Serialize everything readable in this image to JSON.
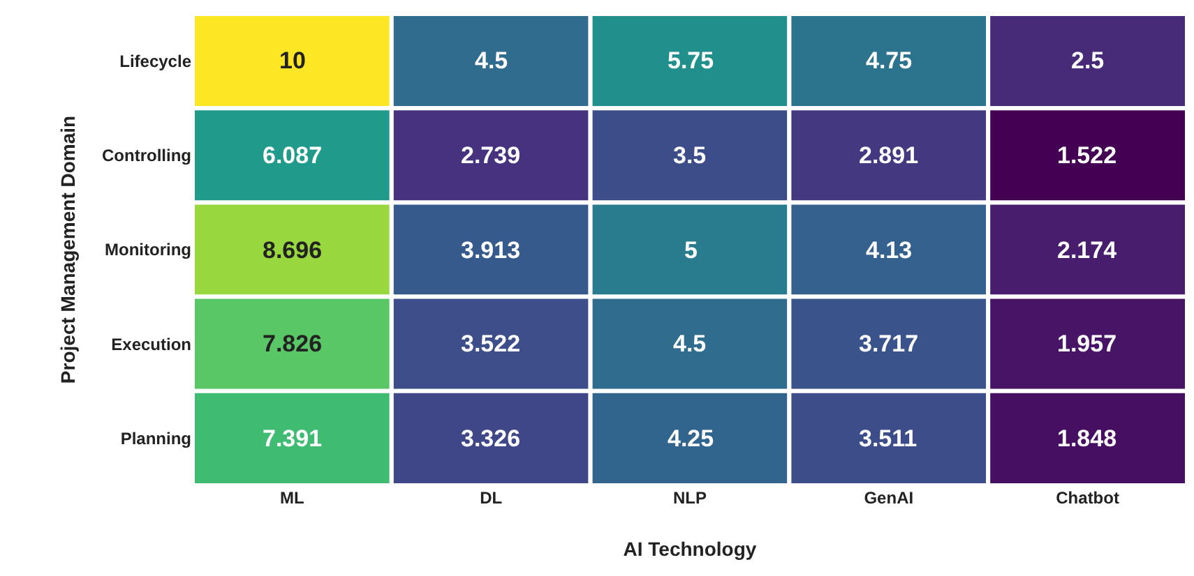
{
  "chart_data": {
    "type": "heatmap",
    "xlabel": "AI Technology",
    "ylabel": "Project Management Domain",
    "categories": [
      "ML",
      "DL",
      "NLP",
      "GenAI",
      "Chatbot"
    ],
    "y_categories": [
      "Lifecycle",
      "Controlling",
      "Monitoring",
      "Execution",
      "Planning"
    ],
    "cells": [
      [
        10,
        4.5,
        5.75,
        4.75,
        2.5
      ],
      [
        6.087,
        2.739,
        3.5,
        2.891,
        1.522
      ],
      [
        8.696,
        3.913,
        5,
        4.13,
        2.174
      ],
      [
        7.826,
        3.522,
        4.5,
        3.717,
        1.957
      ],
      [
        7.391,
        3.326,
        4.25,
        3.511,
        1.848
      ]
    ],
    "data_labels": true
  }
}
